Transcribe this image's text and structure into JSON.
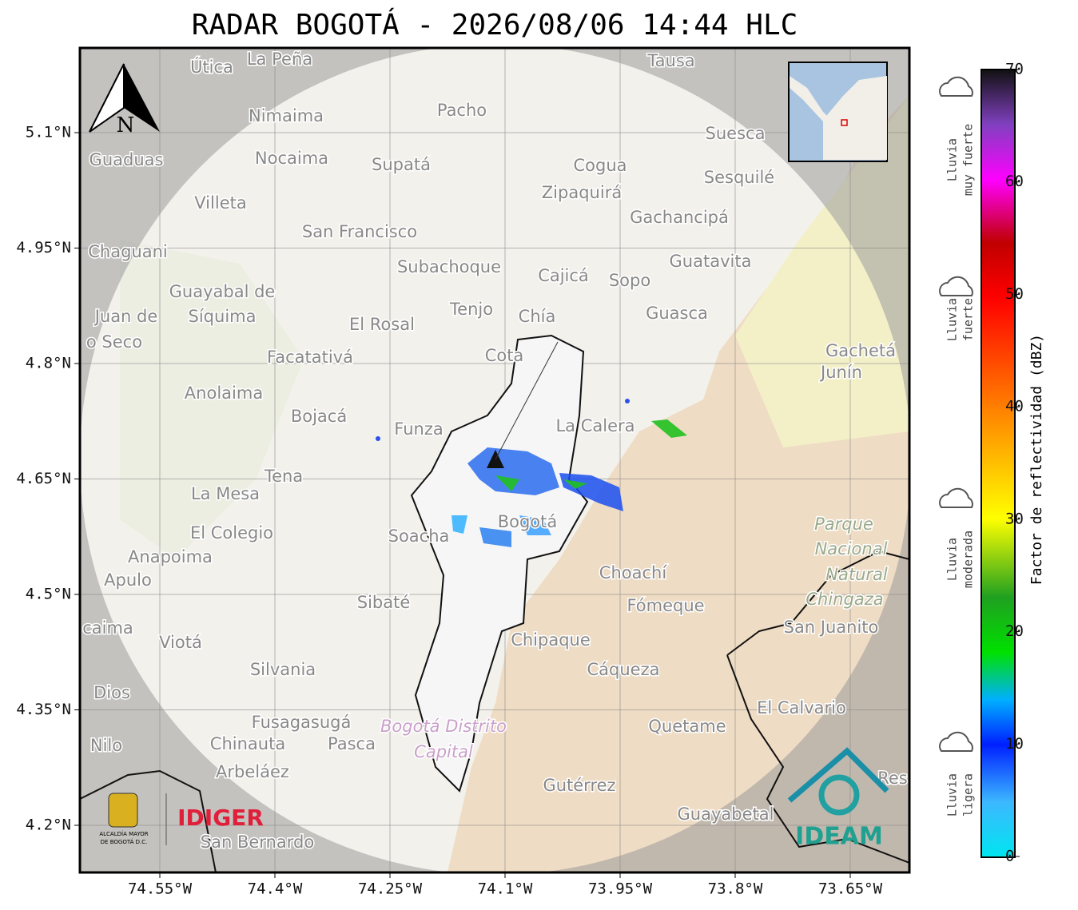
{
  "title": "RADAR BOGOTÁ - 2026/08/06 14:44 HLC",
  "map": {
    "lat_ticks": [
      {
        "value": 5.1,
        "label": "5.1°N"
      },
      {
        "value": 4.95,
        "label": "4.95°N"
      },
      {
        "value": 4.8,
        "label": "4.8°N"
      },
      {
        "value": 4.65,
        "label": "4.65°N"
      },
      {
        "value": 4.5,
        "label": "4.5°N"
      },
      {
        "value": 4.35,
        "label": "4.35°N"
      },
      {
        "value": 4.2,
        "label": "4.2°N"
      }
    ],
    "lon_ticks": [
      {
        "value": 74.55,
        "label": "74.55°W"
      },
      {
        "value": 74.4,
        "label": "74.4°W"
      },
      {
        "value": 74.25,
        "label": "74.25°W"
      },
      {
        "value": 74.1,
        "label": "74.1°W"
      },
      {
        "value": 73.95,
        "label": "73.95°W"
      },
      {
        "value": 73.8,
        "label": "73.8°W"
      },
      {
        "value": 73.65,
        "label": "73.65°W"
      }
    ],
    "north": "N",
    "places": [
      "La Peña",
      "Útica",
      "Tausa",
      "Pacho",
      "Nimaima",
      "Guaduas",
      "Nocaima",
      "Supatá",
      "Cogua",
      "Suesca",
      "Sesquilé",
      "Zipaquirá",
      "Villeta",
      "Gachancipá",
      "San Francisco",
      "Chaguani",
      "Guatavita",
      "Subachoque",
      "Cajicá",
      "Sopo",
      "Guayabal de",
      "Síquima",
      "Juan de",
      "o Seco",
      "Tenjo",
      "Chía",
      "Guasca",
      "El Rosal",
      "Facatativá",
      "Cota",
      "Gachetá",
      "Junín",
      "Anolaima",
      "Bojacá",
      "Funza",
      "La Calera",
      "Tena",
      "La Mesa",
      "El Colegio",
      "Soacha",
      "Bogotá",
      "Parque",
      "Nacional",
      "Natural",
      "Chingaza",
      "Anapoima",
      "Apulo",
      "Choachí",
      "Fómeque",
      "Sibaté",
      "San Juanito",
      "caima",
      "Viotá",
      "Chipaque",
      "Silvania",
      "Cáqueza",
      "Dios",
      "El Calvario",
      "Fusagasugá",
      "Bogotá Distrito",
      "Capital",
      "Quetame",
      "Nilo",
      "Chinauta",
      "Pasca",
      "Arbeláez",
      "Gutérrez",
      "Guayabetal",
      "San Bernardo",
      "Res"
    ]
  },
  "logos": {
    "alcaldia": [
      "ALCALDÍA MAYOR",
      "DE BOGOTÁ D.C."
    ],
    "idiger": "IDIGER",
    "ideam": "IDEAM"
  },
  "colorbar": {
    "label": "Factor de reflectividad (dBZ)",
    "lim": [
      0,
      70
    ],
    "ticks": [
      0,
      10,
      20,
      30,
      40,
      50,
      60,
      70
    ]
  },
  "rain_levels": [
    [
      "Lluvia",
      "muy fuerte"
    ],
    [
      "Lluvia",
      "fuerte"
    ],
    [
      "Lluvia",
      "moderada"
    ],
    [
      "Lluvia",
      "ligera"
    ]
  ]
}
